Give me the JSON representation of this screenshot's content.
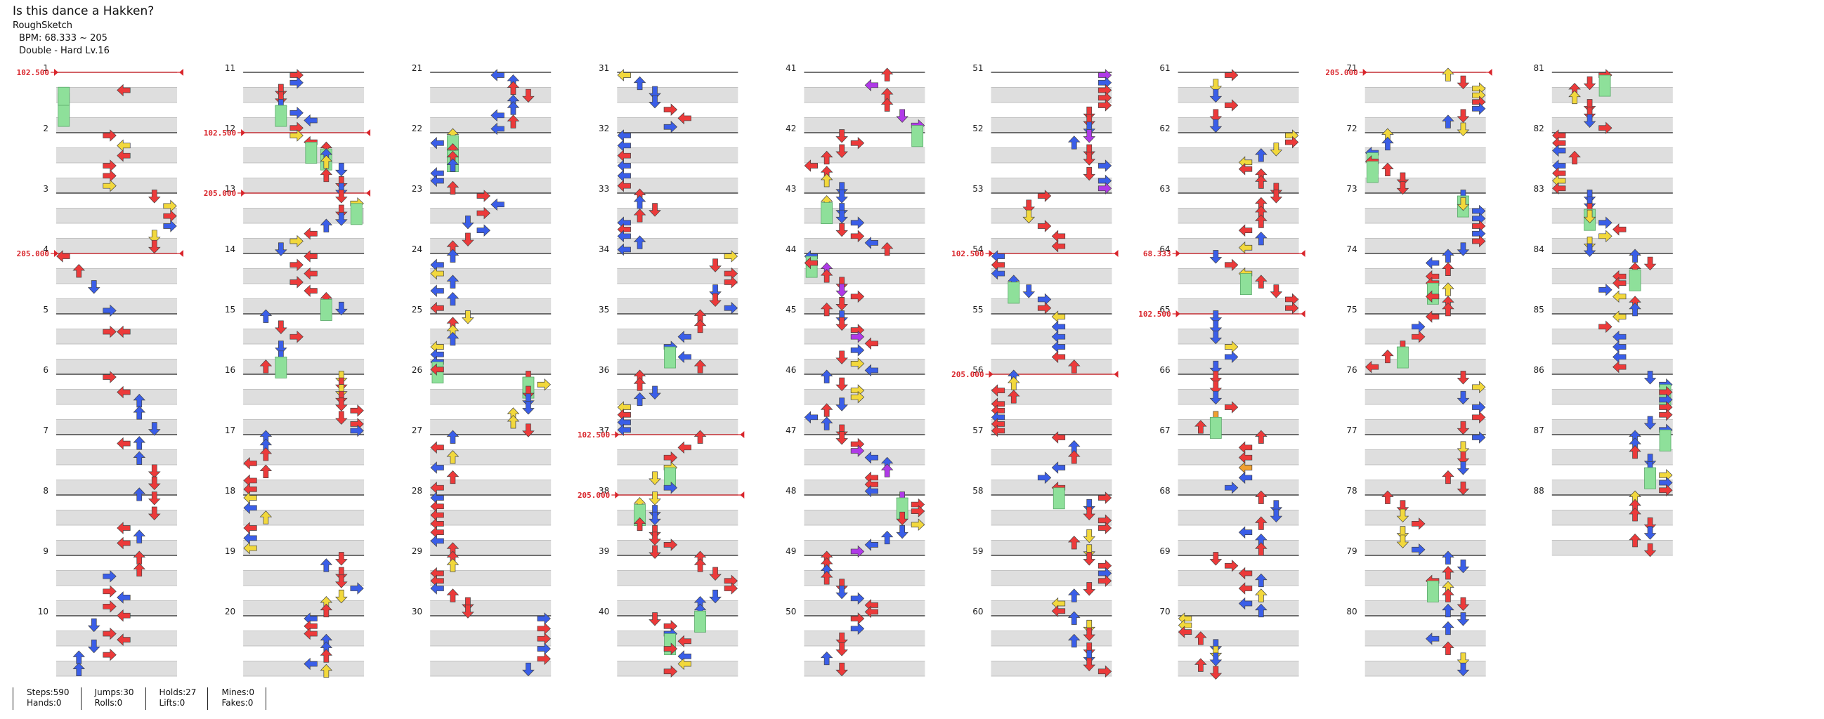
{
  "header": {
    "title": "Is this dance a Hakken?",
    "artist": "RoughSketch",
    "bpm_text": "BPM: 68.333 ~ 205",
    "difficulty_text": "Double - Hard Lv.16"
  },
  "chart": {
    "measures_total": 88,
    "measures_per_column": 10,
    "columns": 9,
    "row_shading": "#dedede",
    "colors": {
      "red": "#ec3a3a",
      "blue": "#3a5ee8",
      "yellow": "#f2d83c",
      "purple": "#b03ae8",
      "orange": "#f0a030",
      "hold": "#8ee09a",
      "bpm_line": "#d9262c"
    },
    "bpm_changes": [
      {
        "measure": 1,
        "label": "102.500"
      },
      {
        "measure": 4,
        "label": "205.000"
      },
      {
        "measure": 12,
        "label": "102.500"
      },
      {
        "measure": 13,
        "label": "205.000"
      },
      {
        "measure": 37,
        "label": "102.500"
      },
      {
        "measure": 38,
        "label": "205.000"
      },
      {
        "measure": 54,
        "label": "102.500"
      },
      {
        "measure": 56,
        "label": "205.000"
      },
      {
        "measure": 64,
        "label": "68.333"
      },
      {
        "measure": 65,
        "label": "102.500"
      },
      {
        "measure": 71,
        "label": "205.000"
      }
    ],
    "notes": [
      {
        "m": 1,
        "b": 0.25,
        "l": 4,
        "c": "red"
      },
      {
        "m": 1,
        "b": 0.3,
        "l": 0,
        "c": "hold",
        "len": 0.55
      },
      {
        "m": 1,
        "b": 0.2,
        "l": 0,
        "c": "green-hold"
      },
      {
        "m": 4,
        "b": 0,
        "l": 0,
        "c": "red"
      },
      {
        "m": 4,
        "b": 0.25,
        "l": 1,
        "c": "red"
      },
      {
        "m": 4,
        "b": 0.5,
        "l": 2,
        "c": "blue"
      },
      {
        "m": 4,
        "b": 0.9,
        "l": 3,
        "c": "blue"
      },
      {
        "m": 5,
        "b": 0.25,
        "l": 3,
        "c": "red"
      },
      {
        "m": 5,
        "b": 0.25,
        "l": 4,
        "c": "red"
      },
      {
        "m": 6,
        "b": 0,
        "l": 3,
        "c": "red"
      },
      {
        "m": 6,
        "b": 0.25,
        "l": 4,
        "c": "red"
      },
      {
        "m": 6,
        "b": 0.4,
        "l": 5,
        "c": "blue"
      },
      {
        "m": 6,
        "b": 0.6,
        "l": 5,
        "c": "blue"
      },
      {
        "m": 6,
        "b": 0.85,
        "l": 6,
        "c": "blue"
      },
      {
        "m": 7,
        "b": 0.1,
        "l": 4,
        "c": "red"
      },
      {
        "m": 7,
        "b": 0.1,
        "l": 5,
        "c": "blue"
      },
      {
        "m": 7,
        "b": 0.35,
        "l": 5,
        "c": "blue"
      },
      {
        "m": 7,
        "b": 0.55,
        "l": 6,
        "c": "red"
      },
      {
        "m": 7,
        "b": 0.75,
        "l": 6,
        "c": "red"
      },
      {
        "m": 7,
        "b": 0.95,
        "l": 5,
        "c": "blue"
      },
      {
        "m": 8,
        "b": 0,
        "l": 6,
        "c": "red"
      },
      {
        "m": 8,
        "b": 0.25,
        "l": 6,
        "c": "red"
      },
      {
        "m": 8,
        "b": 0.5,
        "l": 4,
        "c": "red"
      },
      {
        "m": 8,
        "b": 0.65,
        "l": 5,
        "c": "blue"
      },
      {
        "m": 8,
        "b": 0.75,
        "l": 4,
        "c": "red"
      },
      {
        "m": 9,
        "b": 0,
        "l": 5,
        "c": "red"
      },
      {
        "m": 9,
        "b": 0.2,
        "l": 5,
        "c": "red"
      },
      {
        "m": 9,
        "b": 0.3,
        "l": 3,
        "c": "blue"
      },
      {
        "m": 9,
        "b": 0.55,
        "l": 3,
        "c": "red"
      },
      {
        "m": 9,
        "b": 0.65,
        "l": 4,
        "c": "blue"
      },
      {
        "m": 9,
        "b": 0.8,
        "l": 3,
        "c": "red"
      },
      {
        "m": 9,
        "b": 0.95,
        "l": 4,
        "c": "red"
      },
      {
        "m": 10,
        "b": 0.1,
        "l": 2,
        "c": "blue"
      },
      {
        "m": 10,
        "b": 0.25,
        "l": 3,
        "c": "red"
      },
      {
        "m": 10,
        "b": 0.35,
        "l": 4,
        "c": "red"
      },
      {
        "m": 10,
        "b": 0.45,
        "l": 2,
        "c": "blue"
      },
      {
        "m": 10,
        "b": 0.6,
        "l": 3,
        "c": "red"
      },
      {
        "m": 10,
        "b": 0.65,
        "l": 1,
        "c": "blue"
      },
      {
        "m": 10,
        "b": 0.85,
        "l": 1,
        "c": "blue"
      }
    ],
    "procedural_seed": 20240
  },
  "stats": [
    {
      "a": "Steps:590",
      "b": "Hands:0"
    },
    {
      "a": "Jumps:30",
      "b": "Rolls:0"
    },
    {
      "a": "Holds:27",
      "b": "Lifts:0"
    },
    {
      "a": "Mines:0",
      "b": "Fakes:0"
    }
  ]
}
